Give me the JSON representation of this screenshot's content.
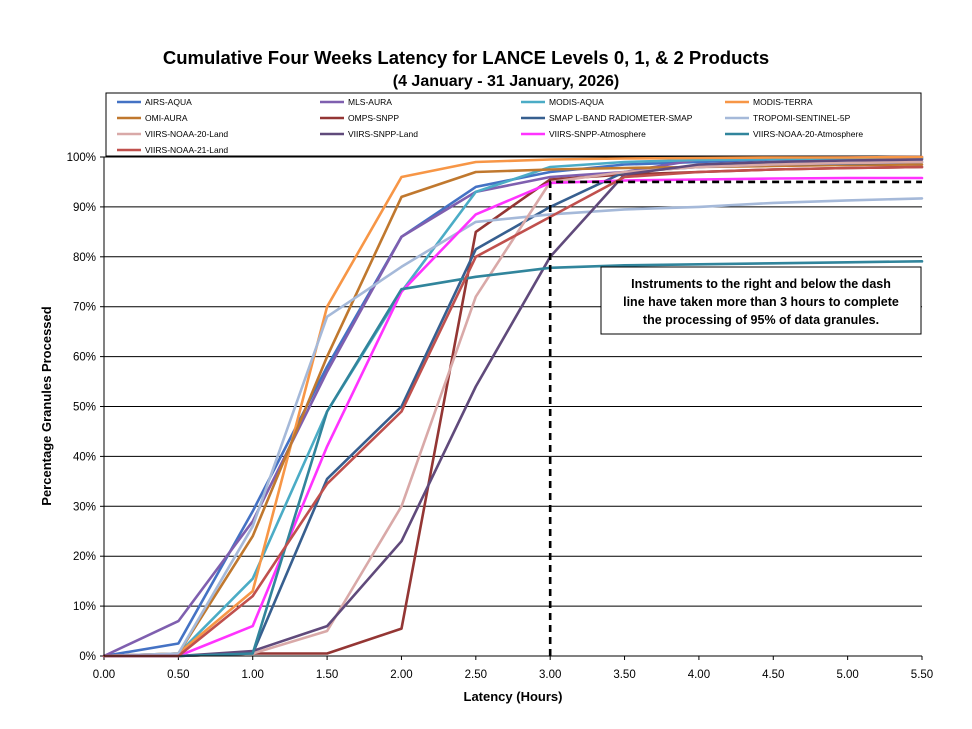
{
  "chart_data": {
    "type": "line",
    "title": "Cumulative Four Weeks Latency  for LANCE Levels 0, 1, & 2 Products",
    "subtitle": "(4  January   -  31  January,  2026)",
    "xlabel": "Latency (Hours)",
    "ylabel": "Percentage Granules Processed",
    "x": [
      0,
      0.5,
      1.0,
      1.5,
      2.0,
      2.5,
      3.0,
      3.5,
      4.0,
      4.5,
      5.0,
      5.5
    ],
    "x_tick_labels": [
      "0.00",
      "0.50",
      "1.00",
      "1.50",
      "2.00",
      "2.50",
      "3.00",
      "3.50",
      "4.00",
      "4.50",
      "5.00",
      "5.50"
    ],
    "y_tick_labels": [
      "0%",
      "10%",
      "20%",
      "30%",
      "40%",
      "50%",
      "60%",
      "70%",
      "80%",
      "90%",
      "100%"
    ],
    "xlim": [
      0,
      5.5
    ],
    "ylim": [
      0,
      100
    ],
    "grid": "horizontal",
    "legend_placement": "top",
    "threshold": {
      "x": 3.0,
      "y": 95
    },
    "annotation": {
      "lines": [
        "Instruments to the right and below the dash",
        "line have taken more than 3 hours to complete",
        "the processing of 95% of data granules."
      ]
    },
    "series": [
      {
        "name": "AIRS-AQUA",
        "color": "#4472C4",
        "values": [
          0,
          2.5,
          29,
          58,
          84,
          94,
          97,
          98.5,
          99,
          99.5,
          99.6,
          99.7
        ]
      },
      {
        "name": "MLS-AURA",
        "color": "#7F5FAF",
        "values": [
          0,
          7,
          27,
          57,
          84,
          93,
          96,
          97,
          99.5,
          99.8,
          99.9,
          100
        ]
      },
      {
        "name": "MODIS-AQUA",
        "color": "#4BACC6",
        "values": [
          0,
          0.5,
          15.5,
          49,
          73,
          93,
          98,
          99,
          99.4,
          99.6,
          99.7,
          99.8
        ]
      },
      {
        "name": "MODIS-TERRA",
        "color": "#F79646",
        "values": [
          0,
          0.5,
          13,
          70,
          96,
          99,
          99.5,
          99.7,
          99.8,
          99.9,
          99.9,
          100
        ]
      },
      {
        "name": "OMI-AURA",
        "color": "#C0782E",
        "values": [
          0,
          0.5,
          24,
          60,
          92,
          97,
          97.5,
          97.8,
          98,
          98.2,
          98.4,
          98.5
        ]
      },
      {
        "name": "OMPS-SNPP",
        "color": "#943634",
        "values": [
          0,
          0,
          0.5,
          0.5,
          5.5,
          85,
          95.5,
          96.5,
          97,
          97.5,
          97.8,
          98
        ]
      },
      {
        "name": "SMAP L-BAND RADIOMETER-SMAP",
        "color": "#375F8F",
        "values": [
          0,
          0,
          0.5,
          35.5,
          50,
          81.5,
          90,
          97,
          98,
          98.5,
          98.7,
          99
        ]
      },
      {
        "name": "TROPOMI-SENTINEL-5P",
        "color": "#A5B9D9",
        "values": [
          0,
          0.5,
          26,
          68,
          78,
          87,
          88.5,
          89.5,
          90,
          90.8,
          91.3,
          91.7
        ]
      },
      {
        "name": "VIIRS-NOAA-20-Land",
        "color": "#D9A9A8",
        "values": [
          0,
          0,
          0.5,
          5,
          30,
          72,
          95,
          97,
          98,
          98.5,
          98.8,
          99
        ]
      },
      {
        "name": "VIIRS-SNPP-Land",
        "color": "#604A7B",
        "values": [
          0,
          0,
          1,
          6,
          23,
          54,
          80,
          96.5,
          98.5,
          99,
          99.3,
          99.5
        ]
      },
      {
        "name": "VIIRS-SNPP-Atmosphere",
        "color": "#FF33FF",
        "values": [
          0,
          0,
          6,
          42,
          73,
          88.5,
          94.8,
          95.3,
          95.5,
          95.7,
          95.8,
          95.8
        ]
      },
      {
        "name": "VIIRS-NOAA-20-Atmosphere",
        "color": "#31859C",
        "values": [
          0,
          0,
          0.5,
          49,
          73.5,
          76,
          77.8,
          78.3,
          78.5,
          78.7,
          78.9,
          79.1
        ]
      },
      {
        "name": "VIIRS-NOAA-21-Land",
        "color": "#C0504D",
        "values": [
          0,
          0,
          12,
          34.5,
          49,
          80,
          88,
          96,
          97,
          97.5,
          97.8,
          98
        ]
      }
    ]
  }
}
